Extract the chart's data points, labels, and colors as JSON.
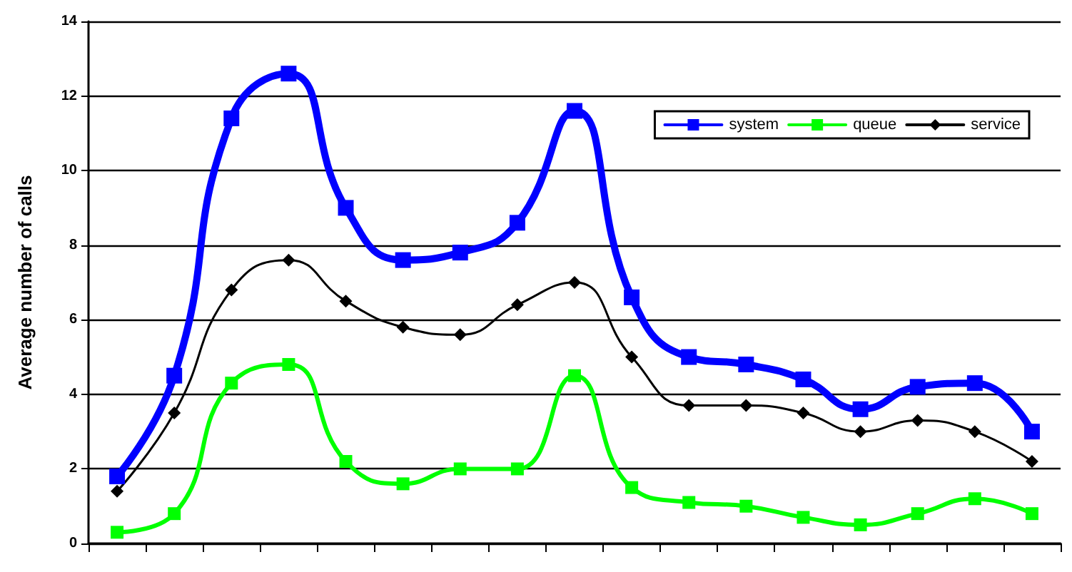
{
  "chart_data": {
    "type": "line",
    "ylabel": "Average number of calls",
    "categories": [
      null,
      null,
      null,
      null,
      null,
      null,
      null,
      null,
      null,
      null,
      null,
      null,
      null,
      null,
      null,
      null,
      null
    ],
    "series": [
      {
        "name": "system",
        "color": "#0000ff",
        "marker": "square",
        "values": [
          1.8,
          4.5,
          11.4,
          12.6,
          9.0,
          7.6,
          7.8,
          8.6,
          11.6,
          6.6,
          5.0,
          4.8,
          4.4,
          3.6,
          4.2,
          4.3,
          3.0
        ]
      },
      {
        "name": "queue",
        "color": "#00ff00",
        "marker": "square",
        "values": [
          0.3,
          0.8,
          4.3,
          4.8,
          2.2,
          1.6,
          2.0,
          2.0,
          4.5,
          1.5,
          1.1,
          1.0,
          0.7,
          0.5,
          0.8,
          1.2,
          0.8
        ]
      },
      {
        "name": "service",
        "color": "#000000",
        "marker": "diamond",
        "values": [
          1.4,
          3.5,
          6.8,
          7.6,
          6.5,
          5.8,
          5.6,
          6.4,
          7.0,
          5.0,
          3.7,
          3.7,
          3.5,
          3.0,
          3.3,
          3.0,
          2.2
        ]
      }
    ],
    "ylim": [
      0,
      14
    ],
    "yticks": [
      0,
      2,
      4,
      6,
      8,
      10,
      12,
      14
    ],
    "grid": "y",
    "legend": "top right",
    "tick_labels": "y",
    "line_style": "solid"
  }
}
